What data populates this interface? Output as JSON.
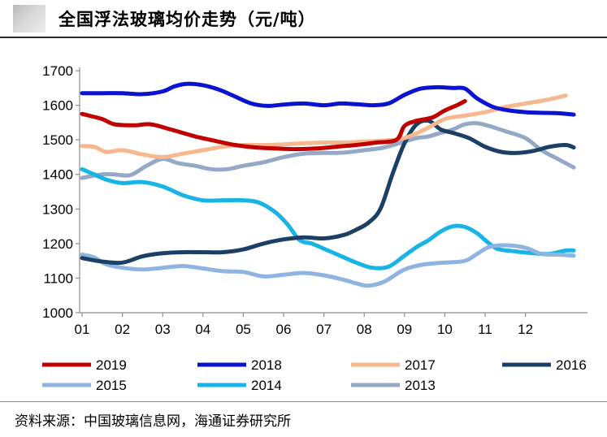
{
  "title": "全国浮法玻璃均价走势（元/吨）",
  "source": "资料来源：中国玻璃信息网，海通证券研究所",
  "chart_data": {
    "type": "line",
    "title": "全国浮法玻璃均价走势（元/吨）",
    "xlabel": "",
    "ylabel": "",
    "ylim": [
      1000,
      1700
    ],
    "yticks": [
      1000,
      1100,
      1200,
      1300,
      1400,
      1500,
      1600,
      1700
    ],
    "x_range": [
      1,
      13.25
    ],
    "categories": [
      "01",
      "02",
      "03",
      "04",
      "05",
      "06",
      "07",
      "08",
      "09",
      "10",
      "11",
      "12"
    ],
    "series": [
      {
        "name": "2019",
        "color": "#c00000",
        "x": [
          1.0,
          1.5,
          1.8,
          2.3,
          2.7,
          3.2,
          3.8,
          4.3,
          4.8,
          5.3,
          5.8,
          6.3,
          6.8,
          7.3,
          7.8,
          8.3,
          8.8,
          9.0,
          9.3,
          9.7,
          10.0,
          10.3,
          10.5
        ],
        "y": [
          1575,
          1560,
          1545,
          1542,
          1545,
          1530,
          1510,
          1497,
          1485,
          1478,
          1475,
          1473,
          1475,
          1480,
          1485,
          1492,
          1500,
          1540,
          1555,
          1565,
          1585,
          1600,
          1612
        ]
      },
      {
        "name": "2018",
        "color": "#0a14d0",
        "x": [
          1.0,
          1.5,
          2.0,
          2.5,
          3.0,
          3.3,
          3.6,
          4.0,
          4.4,
          4.8,
          5.2,
          5.6,
          6.0,
          6.5,
          7.0,
          7.4,
          7.8,
          8.2,
          8.6,
          9.0,
          9.4,
          9.8,
          10.2,
          10.5,
          10.8,
          11.2,
          11.6,
          12.0,
          12.4,
          12.8,
          13.2
        ],
        "y": [
          1635,
          1635,
          1635,
          1632,
          1640,
          1655,
          1662,
          1658,
          1645,
          1625,
          1605,
          1598,
          1602,
          1605,
          1600,
          1605,
          1603,
          1600,
          1605,
          1630,
          1648,
          1652,
          1650,
          1648,
          1620,
          1595,
          1585,
          1580,
          1578,
          1577,
          1573
        ]
      },
      {
        "name": "2017",
        "color": "#f7b88f",
        "x": [
          1.0,
          1.3,
          1.6,
          2.0,
          2.5,
          3.0,
          3.5,
          4.0,
          4.5,
          5.0,
          5.5,
          6.0,
          6.5,
          7.0,
          7.5,
          8.0,
          8.5,
          9.0,
          9.5,
          10.0,
          10.5,
          11.0,
          11.5,
          12.0,
          12.5,
          13.0
        ],
        "y": [
          1482,
          1480,
          1465,
          1470,
          1458,
          1450,
          1460,
          1470,
          1480,
          1485,
          1485,
          1487,
          1490,
          1492,
          1492,
          1495,
          1498,
          1505,
          1530,
          1560,
          1570,
          1580,
          1595,
          1605,
          1615,
          1628
        ]
      },
      {
        "name": "2016",
        "color": "#1c3f66",
        "x": [
          1.0,
          1.5,
          2.0,
          2.5,
          3.0,
          3.5,
          4.0,
          4.5,
          5.0,
          5.5,
          6.0,
          6.5,
          7.0,
          7.5,
          7.8,
          8.1,
          8.4,
          8.7,
          9.0,
          9.3,
          9.6,
          9.9,
          10.2,
          10.6,
          11.0,
          11.4,
          11.8,
          12.2,
          12.6,
          13.0,
          13.2
        ],
        "y": [
          1158,
          1148,
          1145,
          1163,
          1172,
          1175,
          1175,
          1175,
          1183,
          1200,
          1212,
          1218,
          1215,
          1225,
          1240,
          1260,
          1300,
          1400,
          1490,
          1545,
          1555,
          1530,
          1520,
          1505,
          1480,
          1465,
          1462,
          1468,
          1480,
          1485,
          1478
        ]
      },
      {
        "name": "2015",
        "color": "#8fb4e2",
        "x": [
          1.0,
          1.3,
          1.6,
          2.0,
          2.5,
          3.0,
          3.5,
          4.0,
          4.5,
          5.0,
          5.5,
          6.0,
          6.5,
          7.0,
          7.5,
          7.8,
          8.1,
          8.5,
          9.0,
          9.5,
          10.0,
          10.5,
          10.8,
          11.1,
          11.5,
          12.0,
          12.4,
          12.8,
          13.2
        ],
        "y": [
          1168,
          1160,
          1140,
          1130,
          1125,
          1130,
          1135,
          1128,
          1120,
          1118,
          1105,
          1110,
          1115,
          1108,
          1095,
          1085,
          1078,
          1090,
          1125,
          1140,
          1145,
          1150,
          1170,
          1190,
          1195,
          1188,
          1170,
          1168,
          1165
        ]
      },
      {
        "name": "2014",
        "color": "#19b4e6",
        "x": [
          1.0,
          1.3,
          1.6,
          2.0,
          2.5,
          3.0,
          3.5,
          4.0,
          4.5,
          5.0,
          5.4,
          5.8,
          6.1,
          6.4,
          6.7,
          7.0,
          7.4,
          7.8,
          8.2,
          8.6,
          9.0,
          9.3,
          9.6,
          9.9,
          10.2,
          10.5,
          10.8,
          11.0,
          11.3,
          11.7,
          12.2,
          12.6,
          13.0,
          13.2
        ],
        "y": [
          1415,
          1400,
          1385,
          1375,
          1378,
          1365,
          1340,
          1325,
          1325,
          1325,
          1318,
          1290,
          1255,
          1210,
          1200,
          1185,
          1165,
          1145,
          1130,
          1133,
          1165,
          1190,
          1210,
          1235,
          1250,
          1248,
          1230,
          1210,
          1185,
          1178,
          1172,
          1170,
          1180,
          1180
        ]
      },
      {
        "name": "2013",
        "color": "#95a9c7",
        "x": [
          1.0,
          1.5,
          1.8,
          2.2,
          2.6,
          3.0,
          3.4,
          3.8,
          4.2,
          4.6,
          5.0,
          5.5,
          6.0,
          6.5,
          7.0,
          7.5,
          8.0,
          8.5,
          9.0,
          9.3,
          9.6,
          9.9,
          10.2,
          10.5,
          10.8,
          11.1,
          11.5,
          12.0,
          12.4,
          12.8,
          13.2
        ],
        "y": [
          1390,
          1400,
          1400,
          1398,
          1425,
          1445,
          1432,
          1425,
          1415,
          1415,
          1425,
          1435,
          1450,
          1460,
          1462,
          1463,
          1470,
          1478,
          1495,
          1505,
          1510,
          1520,
          1530,
          1545,
          1548,
          1540,
          1525,
          1505,
          1470,
          1445,
          1420
        ]
      }
    ]
  }
}
